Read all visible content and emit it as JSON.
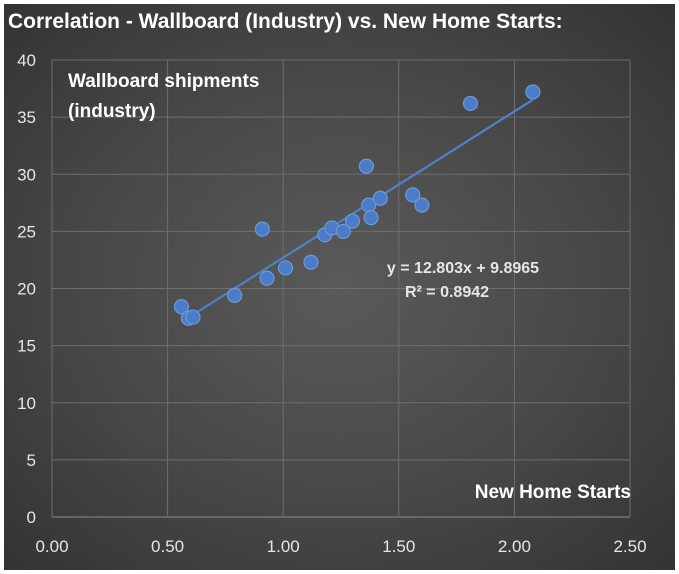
{
  "title": "Correlation - Wallboard (Industry) vs. New Home Starts:",
  "chart_data": {
    "type": "scatter",
    "title": "Correlation - Wallboard (Industry) vs. New Home Starts:",
    "ylabel_lines": [
      "Wallboard shipments",
      "(industry)"
    ],
    "xlabel": "New Home Starts",
    "xlim": [
      0,
      2.5
    ],
    "ylim": [
      0,
      40
    ],
    "x_ticks": [
      "0.00",
      "0.50",
      "1.00",
      "1.50",
      "2.00",
      "2.50"
    ],
    "y_ticks": [
      "0",
      "5",
      "10",
      "15",
      "20",
      "25",
      "30",
      "35",
      "40"
    ],
    "grid": true,
    "points": [
      {
        "x": 0.56,
        "y": 18.4
      },
      {
        "x": 0.59,
        "y": 17.4
      },
      {
        "x": 0.61,
        "y": 17.5
      },
      {
        "x": 0.79,
        "y": 19.4
      },
      {
        "x": 0.91,
        "y": 25.2
      },
      {
        "x": 0.93,
        "y": 20.9
      },
      {
        "x": 1.01,
        "y": 21.8
      },
      {
        "x": 1.12,
        "y": 22.3
      },
      {
        "x": 1.18,
        "y": 24.7
      },
      {
        "x": 1.21,
        "y": 25.3
      },
      {
        "x": 1.26,
        "y": 25.0
      },
      {
        "x": 1.3,
        "y": 25.9
      },
      {
        "x": 1.36,
        "y": 30.7
      },
      {
        "x": 1.37,
        "y": 27.3
      },
      {
        "x": 1.38,
        "y": 26.2
      },
      {
        "x": 1.42,
        "y": 27.9
      },
      {
        "x": 1.56,
        "y": 28.2
      },
      {
        "x": 1.6,
        "y": 27.3
      },
      {
        "x": 1.81,
        "y": 36.2
      },
      {
        "x": 2.08,
        "y": 37.2
      }
    ],
    "trendline": {
      "slope": 12.803,
      "intercept": 9.8965,
      "x_start": 0.56,
      "x_end": 2.08
    },
    "equation": "y = 12.803x + 9.8965",
    "r_squared": "R² = 0.8942",
    "marker_color": "#4a7cc7",
    "line_color": "#4f81c8"
  }
}
